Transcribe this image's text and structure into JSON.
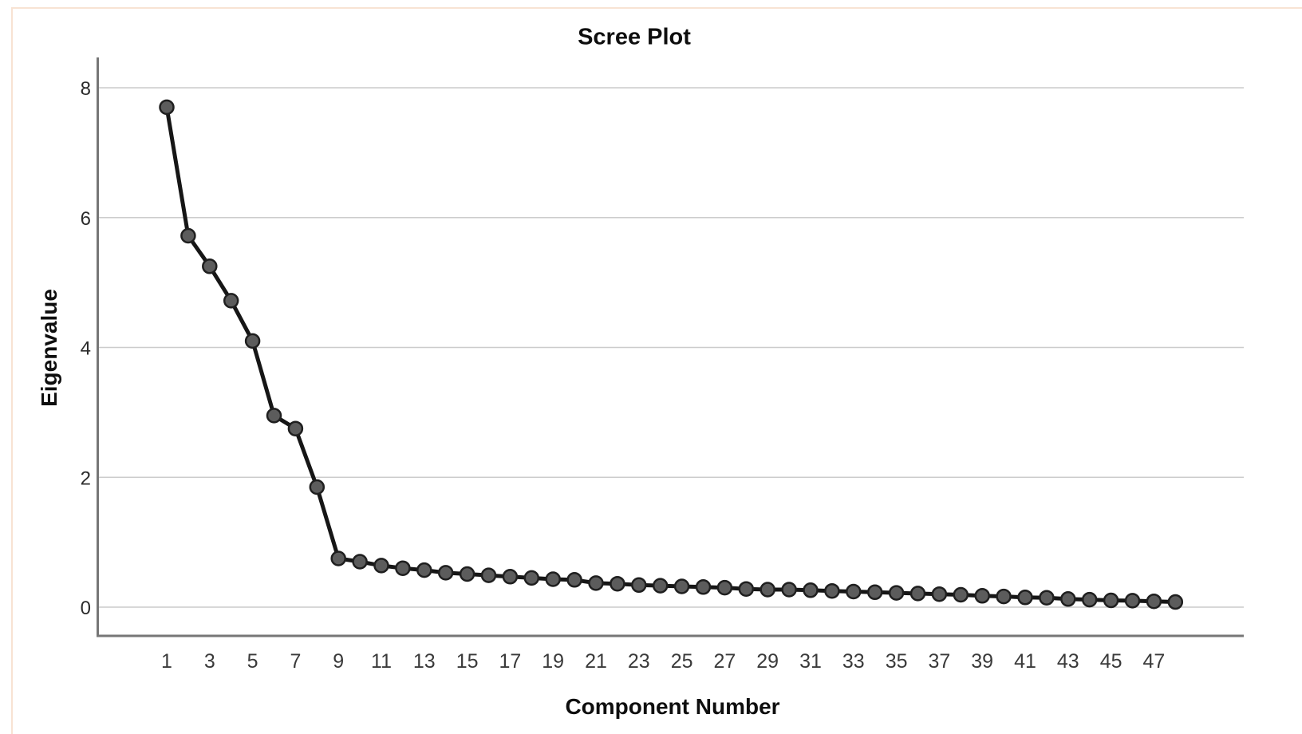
{
  "page": {
    "background": "#ffffff",
    "edge_accent_color": "#f8e3d3"
  },
  "chart_data": {
    "type": "line",
    "title": "Scree Plot",
    "xlabel": "Component Number",
    "ylabel": "Eigenvalue",
    "x": [
      1,
      2,
      3,
      4,
      5,
      6,
      7,
      8,
      9,
      10,
      11,
      12,
      13,
      14,
      15,
      16,
      17,
      18,
      19,
      20,
      21,
      22,
      23,
      24,
      25,
      26,
      27,
      28,
      29,
      30,
      31,
      32,
      33,
      34,
      35,
      36,
      37,
      38,
      39,
      40,
      41,
      42,
      43,
      44,
      45,
      46,
      47,
      48
    ],
    "series": [
      {
        "name": "Eigenvalue",
        "values": [
          7.7,
          5.72,
          5.25,
          4.72,
          4.1,
          2.95,
          2.75,
          1.85,
          0.75,
          0.7,
          0.64,
          0.6,
          0.57,
          0.53,
          0.51,
          0.49,
          0.47,
          0.45,
          0.43,
          0.42,
          0.37,
          0.36,
          0.34,
          0.33,
          0.32,
          0.31,
          0.3,
          0.28,
          0.27,
          0.27,
          0.26,
          0.25,
          0.24,
          0.23,
          0.22,
          0.21,
          0.2,
          0.19,
          0.175,
          0.165,
          0.15,
          0.145,
          0.125,
          0.115,
          0.105,
          0.1,
          0.09,
          0.08
        ]
      }
    ],
    "xtick_labels": [
      "1",
      "3",
      "5",
      "7",
      "9",
      "11",
      "13",
      "15",
      "17",
      "19",
      "21",
      "23",
      "25",
      "27",
      "29",
      "31",
      "33",
      "35",
      "37",
      "39",
      "41",
      "43",
      "45",
      "47"
    ],
    "ytick_labels": [
      "0",
      "2",
      "4",
      "6",
      "8"
    ],
    "xlim": [
      -2.2,
      51.2
    ],
    "ylim": [
      -0.45,
      8.45
    ],
    "grid": "horizontal",
    "legend": "none",
    "colors": {
      "line": "#161616",
      "marker_fill": "#5c5c5c",
      "marker_stroke": "#1f1f1f",
      "gridline": "#cccccc",
      "axis_line": "#767676",
      "tick_label": "#3a3a3a"
    }
  }
}
